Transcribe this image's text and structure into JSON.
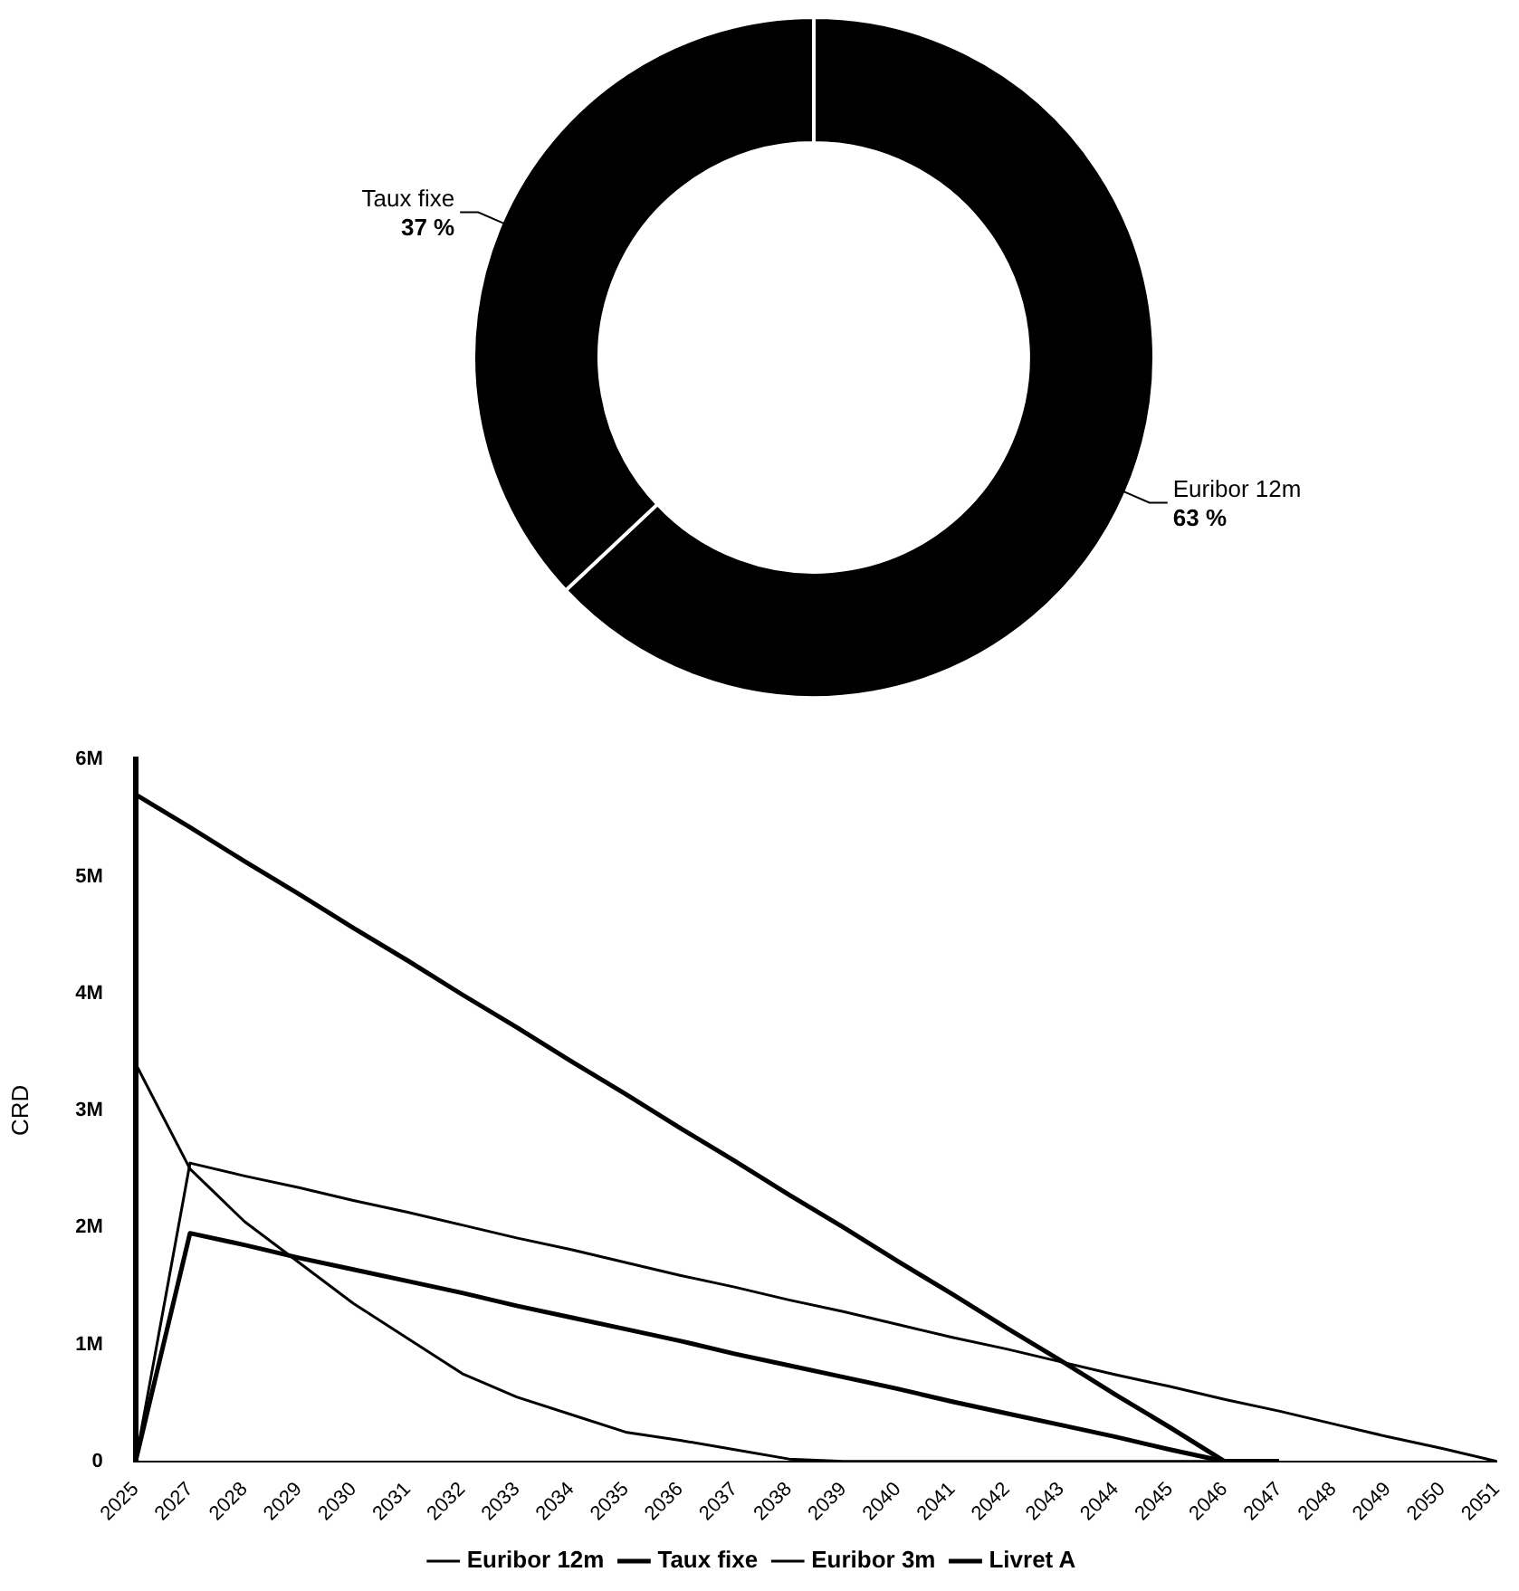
{
  "chart_data": [
    {
      "type": "donut",
      "categories": [
        "Euribor 12m",
        "Taux fixe"
      ],
      "values": [
        63,
        37
      ],
      "colors": [
        "#000000",
        "#000000"
      ],
      "value_labels": [
        "63 %",
        "37 %"
      ],
      "legend": false
    },
    {
      "type": "line",
      "ylabel": "CRD",
      "categories": [
        "2025",
        "2027",
        "2028",
        "2029",
        "2030",
        "2031",
        "2032",
        "2033",
        "2034",
        "2035",
        "2036",
        "2037",
        "2038",
        "2039",
        "2040",
        "2041",
        "2042",
        "2043",
        "2044",
        "2045",
        "2046",
        "2047",
        "2048",
        "2049",
        "2050",
        "2051"
      ],
      "series": [
        {
          "name": "Euribor 12m",
          "color": "#000000",
          "values": [
            0,
            2550000,
            2440000,
            2340000,
            2230000,
            2130000,
            2020000,
            1910000,
            1810000,
            1700000,
            1590000,
            1490000,
            1380000,
            1280000,
            1170000,
            1060000,
            960000,
            850000,
            740000,
            640000,
            530000,
            430000,
            320000,
            210000,
            110000,
            0
          ]
        },
        {
          "name": "Taux fixe",
          "color": "#000000",
          "values": [
            5700000,
            5420000,
            5130000,
            4850000,
            4560000,
            4280000,
            3990000,
            3710000,
            3420000,
            3140000,
            2850000,
            2570000,
            2280000,
            2000000,
            1710000,
            1430000,
            1140000,
            860000,
            570000,
            290000,
            0,
            0,
            null,
            null,
            null,
            null
          ]
        },
        {
          "name": "Euribor 3m",
          "color": "#000000",
          "values": [
            3400000,
            2500000,
            2050000,
            1700000,
            1350000,
            1050000,
            750000,
            550000,
            400000,
            250000,
            180000,
            100000,
            20000,
            0,
            0,
            0,
            0,
            0,
            0,
            0,
            0,
            0,
            null,
            null,
            null,
            null
          ]
        },
        {
          "name": "Livret A",
          "color": "#000000",
          "values": [
            0,
            1950000,
            1850000,
            1740000,
            1640000,
            1540000,
            1440000,
            1330000,
            1230000,
            1130000,
            1030000,
            920000,
            820000,
            720000,
            620000,
            510000,
            410000,
            310000,
            210000,
            100000,
            0,
            0,
            null,
            null,
            null,
            null
          ]
        }
      ],
      "ylim": [
        0,
        6000000
      ],
      "yticks": [
        {
          "value": 0,
          "label": "0"
        },
        {
          "value": 1000000,
          "label": "1M"
        },
        {
          "value": 2000000,
          "label": "2M"
        },
        {
          "value": 3000000,
          "label": "3M"
        },
        {
          "value": 4000000,
          "label": "4M"
        },
        {
          "value": 5000000,
          "label": "5M"
        },
        {
          "value": 6000000,
          "label": "6M"
        }
      ],
      "grid": false,
      "legend": "bottom",
      "marker": "none",
      "line_style": "solid"
    }
  ]
}
